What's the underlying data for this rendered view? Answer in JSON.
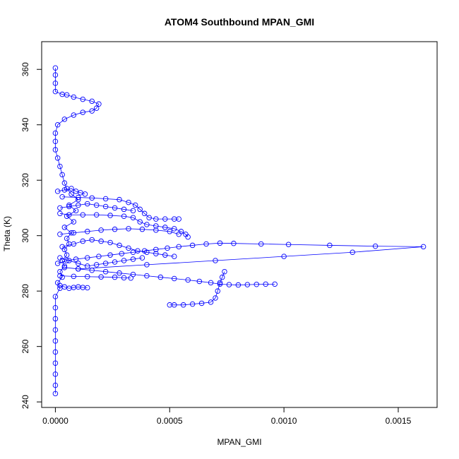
{
  "chart_data": {
    "type": "scatter",
    "title": "ATOM4 Southbound MPAN_GMI",
    "xlabel": "MPAN_GMI",
    "ylabel": "Theta (K)",
    "xlim": [
      -6e-05,
      0.00167
    ],
    "ylim": [
      238,
      370
    ],
    "x_ticks": [
      0.0,
      0.0005,
      0.001,
      0.0015
    ],
    "x_tick_labels": [
      "0.0000",
      "0.0005",
      "0.0010",
      "0.0015"
    ],
    "y_ticks": [
      240,
      260,
      280,
      300,
      320,
      340,
      360
    ],
    "y_tick_labels": [
      "240",
      "260",
      "280",
      "300",
      "320",
      "340",
      "360"
    ],
    "grid": false,
    "marker": "open-circle",
    "connected": true,
    "color": "#0000ff",
    "series": [
      {
        "points": [
          [
            0.0,
            243
          ],
          [
            0.0,
            246
          ],
          [
            0.0,
            250
          ],
          [
            0.0,
            254
          ],
          [
            0.0,
            258
          ],
          [
            0.0,
            262
          ],
          [
            0.0,
            266
          ],
          [
            0.0,
            270
          ],
          [
            0.0,
            274
          ],
          [
            0.0,
            278
          ],
          [
            2e-05,
            281
          ],
          [
            1e-05,
            283
          ],
          [
            3e-05,
            285
          ],
          [
            2e-05,
            287
          ],
          [
            4e-05,
            289
          ],
          [
            3e-05,
            291
          ],
          [
            5e-05,
            293
          ],
          [
            4e-05,
            295
          ],
          [
            6e-05,
            297
          ],
          [
            5e-05,
            299
          ],
          [
            7e-05,
            301
          ],
          [
            4e-05,
            303
          ],
          [
            8e-05,
            305
          ],
          [
            5e-05,
            307
          ],
          [
            9e-05,
            309
          ],
          [
            6e-05,
            311
          ],
          [
            0.0001,
            313
          ],
          [
            7e-05,
            315
          ],
          [
            5e-05,
            317
          ],
          [
            4e-05,
            319
          ],
          [
            3e-05,
            322
          ],
          [
            2e-05,
            325
          ],
          [
            1e-05,
            328
          ],
          [
            0.0,
            331
          ],
          [
            0.0,
            334
          ],
          [
            0.0,
            337
          ],
          [
            1e-05,
            340
          ],
          [
            4e-05,
            342
          ],
          [
            8e-05,
            343.5
          ],
          [
            0.00012,
            344.5
          ],
          [
            0.00016,
            345
          ],
          [
            0.00018,
            346
          ],
          [
            0.00019,
            347.5
          ],
          [
            0.00016,
            348.5
          ],
          [
            0.00012,
            349.2
          ],
          [
            8e-05,
            350
          ],
          [
            5e-05,
            350.8
          ],
          [
            3e-05,
            351
          ],
          [
            0.0,
            352
          ],
          [
            0.0,
            355
          ],
          [
            0.0,
            358
          ],
          [
            0.0,
            360.5
          ]
        ]
      },
      {
        "points": [
          [
            1e-05,
            290
          ],
          [
            5e-05,
            291
          ],
          [
            9e-05,
            291.5
          ],
          [
            0.00014,
            292
          ],
          [
            0.00019,
            292.5
          ],
          [
            0.00024,
            293
          ],
          [
            0.00029,
            293.5
          ],
          [
            0.00034,
            294
          ],
          [
            0.00039,
            294.5
          ],
          [
            0.00044,
            295
          ],
          [
            0.00049,
            295.5
          ],
          [
            0.00054,
            296
          ],
          [
            0.0006,
            296.5
          ],
          [
            0.00066,
            297
          ],
          [
            0.00072,
            297.3
          ],
          [
            0.00078,
            297.2
          ],
          [
            0.0009,
            297
          ],
          [
            0.00102,
            296.8
          ],
          [
            0.0012,
            296.5
          ],
          [
            0.0014,
            296.2
          ],
          [
            0.00161,
            296
          ],
          [
            0.0013,
            294
          ],
          [
            0.001,
            292.5
          ],
          [
            0.0007,
            291
          ],
          [
            0.0004,
            289.5
          ],
          [
            0.0001,
            288
          ]
        ]
      },
      {
        "points": [
          [
            2e-05,
            308
          ],
          [
            6e-05,
            307.5
          ],
          [
            0.00012,
            307.5
          ],
          [
            0.00018,
            307.5
          ],
          [
            0.00024,
            307.3
          ],
          [
            0.0003,
            307
          ],
          [
            0.00034,
            306.5
          ],
          [
            0.00037,
            305
          ],
          [
            0.0004,
            304
          ],
          [
            0.00044,
            303.5
          ],
          [
            0.00048,
            303
          ],
          [
            0.00052,
            302.5
          ],
          [
            0.00055,
            301.5
          ],
          [
            0.00057,
            300.5
          ],
          [
            0.00058,
            299.5
          ]
        ]
      },
      {
        "points": [
          [
            3e-05,
            314
          ],
          [
            0.0001,
            313.8
          ],
          [
            0.00016,
            313.6
          ],
          [
            0.00022,
            313.3
          ],
          [
            0.00028,
            313
          ],
          [
            0.00032,
            312
          ],
          [
            0.00035,
            311
          ],
          [
            0.00037,
            309.5
          ],
          [
            0.00039,
            308
          ],
          [
            0.00041,
            306.5
          ],
          [
            0.00044,
            306
          ],
          [
            0.00048,
            306
          ],
          [
            0.00052,
            306
          ],
          [
            0.00054,
            306
          ]
        ]
      },
      {
        "points": [
          [
            2e-05,
            285.5
          ],
          [
            8e-05,
            285.3
          ],
          [
            0.00014,
            285.2
          ],
          [
            0.0002,
            285.1
          ],
          [
            0.00026,
            285
          ],
          [
            0.0003,
            284.8
          ],
          [
            0.00033,
            284.7
          ]
        ]
      },
      {
        "points": [
          [
            4e-05,
            288.5
          ],
          [
            0.0001,
            288
          ],
          [
            0.00016,
            287.5
          ],
          [
            0.00022,
            287
          ],
          [
            0.00028,
            286.5
          ],
          [
            0.00034,
            286
          ],
          [
            0.0004,
            285.5
          ],
          [
            0.00046,
            285
          ],
          [
            0.00052,
            284.5
          ],
          [
            0.00058,
            284
          ],
          [
            0.00063,
            283.5
          ],
          [
            0.00068,
            283
          ],
          [
            0.00072,
            282.5
          ],
          [
            0.00076,
            282.3
          ],
          [
            0.0008,
            282.2
          ],
          [
            0.00084,
            282.3
          ],
          [
            0.00088,
            282.4
          ],
          [
            0.00092,
            282.5
          ],
          [
            0.00096,
            282.5
          ]
        ]
      },
      {
        "points": [
          [
            0.0005,
            275
          ],
          [
            0.00052,
            275
          ],
          [
            0.00056,
            275
          ],
          [
            0.0006,
            275.3
          ],
          [
            0.00064,
            275.6
          ],
          [
            0.00068,
            276
          ],
          [
            0.0007,
            277.5
          ],
          [
            0.00071,
            280
          ],
          [
            0.00072,
            283
          ],
          [
            0.00073,
            285
          ],
          [
            0.00074,
            287
          ]
        ]
      },
      {
        "points": [
          [
            2e-05,
            282
          ],
          [
            4e-05,
            281.5
          ],
          [
            6e-05,
            281
          ],
          [
            8e-05,
            281.3
          ],
          [
            0.0001,
            281.5
          ],
          [
            0.00012,
            281.3
          ],
          [
            0.00014,
            281.2
          ]
        ]
      },
      {
        "points": [
          [
            2e-05,
            300.5
          ],
          [
            8e-05,
            301
          ],
          [
            0.00014,
            301.5
          ],
          [
            0.0002,
            302
          ],
          [
            0.00026,
            302.3
          ],
          [
            0.00032,
            302.5
          ],
          [
            0.00038,
            302.3
          ],
          [
            0.00044,
            302
          ],
          [
            0.0005,
            301.5
          ],
          [
            0.00054,
            300.5
          ]
        ]
      },
      {
        "points": [
          [
            3e-05,
            296
          ],
          [
            8e-05,
            297
          ],
          [
            0.00012,
            298
          ],
          [
            0.00016,
            298.5
          ],
          [
            0.0002,
            298
          ],
          [
            0.00024,
            297.5
          ],
          [
            0.00028,
            296.5
          ],
          [
            0.00032,
            295.5
          ],
          [
            0.00036,
            294.5
          ],
          [
            0.0004,
            294
          ],
          [
            0.00044,
            293.5
          ],
          [
            0.00048,
            293
          ],
          [
            0.00052,
            292.5
          ]
        ]
      },
      {
        "points": [
          [
            2e-05,
            310
          ],
          [
            6e-05,
            310.5
          ],
          [
            0.0001,
            311
          ],
          [
            0.00014,
            311.5
          ],
          [
            0.00018,
            311
          ],
          [
            0.00022,
            310.5
          ],
          [
            0.00026,
            310
          ],
          [
            0.0003,
            309.5
          ],
          [
            0.00034,
            309
          ]
        ]
      },
      {
        "points": [
          [
            2e-05,
            292
          ],
          [
            6e-05,
            291
          ],
          [
            0.0001,
            290
          ],
          [
            0.00014,
            289
          ],
          [
            0.00018,
            289.5
          ],
          [
            0.00022,
            290
          ],
          [
            0.00026,
            290.5
          ],
          [
            0.0003,
            291
          ],
          [
            0.00034,
            291.5
          ],
          [
            0.00038,
            292
          ]
        ]
      },
      {
        "points": [
          [
            1e-05,
            316
          ],
          [
            4e-05,
            316.5
          ],
          [
            7e-05,
            317
          ],
          [
            9e-05,
            316
          ],
          [
            0.00011,
            315.5
          ],
          [
            0.00013,
            315
          ]
        ]
      }
    ]
  }
}
